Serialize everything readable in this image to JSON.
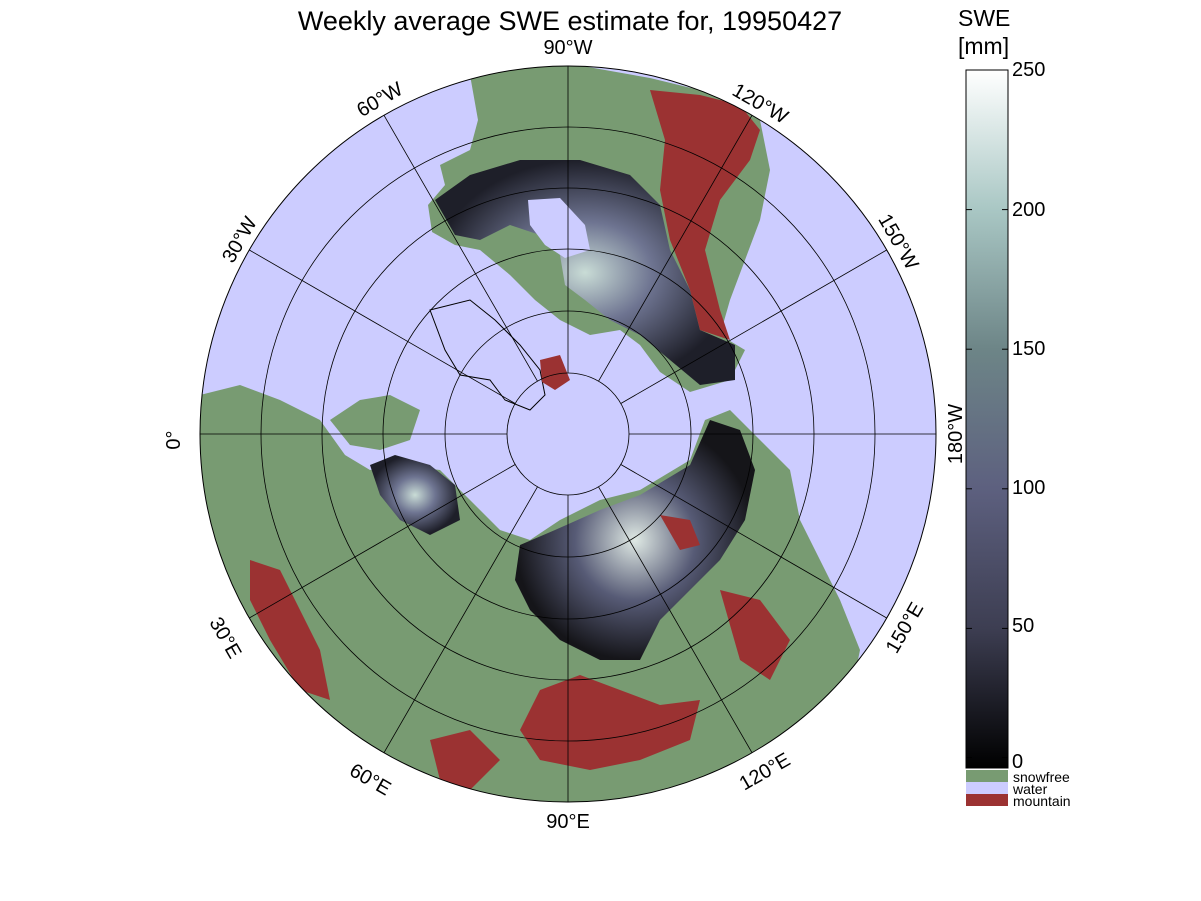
{
  "title": "Weekly average SWE estimate for, 19950427",
  "colorbar": {
    "title_line1": "SWE",
    "title_line2": "[mm]",
    "ticks": [
      "250",
      "200",
      "150",
      "100",
      "50",
      "0"
    ],
    "gradient": [
      "#ffffff",
      "#a9c7c4",
      "#6d8587",
      "#5d607f",
      "#3d3e52",
      "#000000"
    ]
  },
  "legend": [
    {
      "label": "snowfree",
      "color": "#789b72"
    },
    {
      "label": "water",
      "color": "#ccccff"
    },
    {
      "label": "mountain",
      "color": "#9b3232"
    }
  ],
  "map": {
    "projection": "polar-stereographic-north",
    "ocean_color": "#ccccff",
    "land_color": "#789b72",
    "mountain_color": "#9b3232",
    "lon_labels": [
      "90°W",
      "120°W",
      "150°W",
      "180°W",
      "150°E",
      "120°E",
      "90°E",
      "60°E",
      "30°E",
      "0°",
      "30°W",
      "60°W"
    ]
  }
}
